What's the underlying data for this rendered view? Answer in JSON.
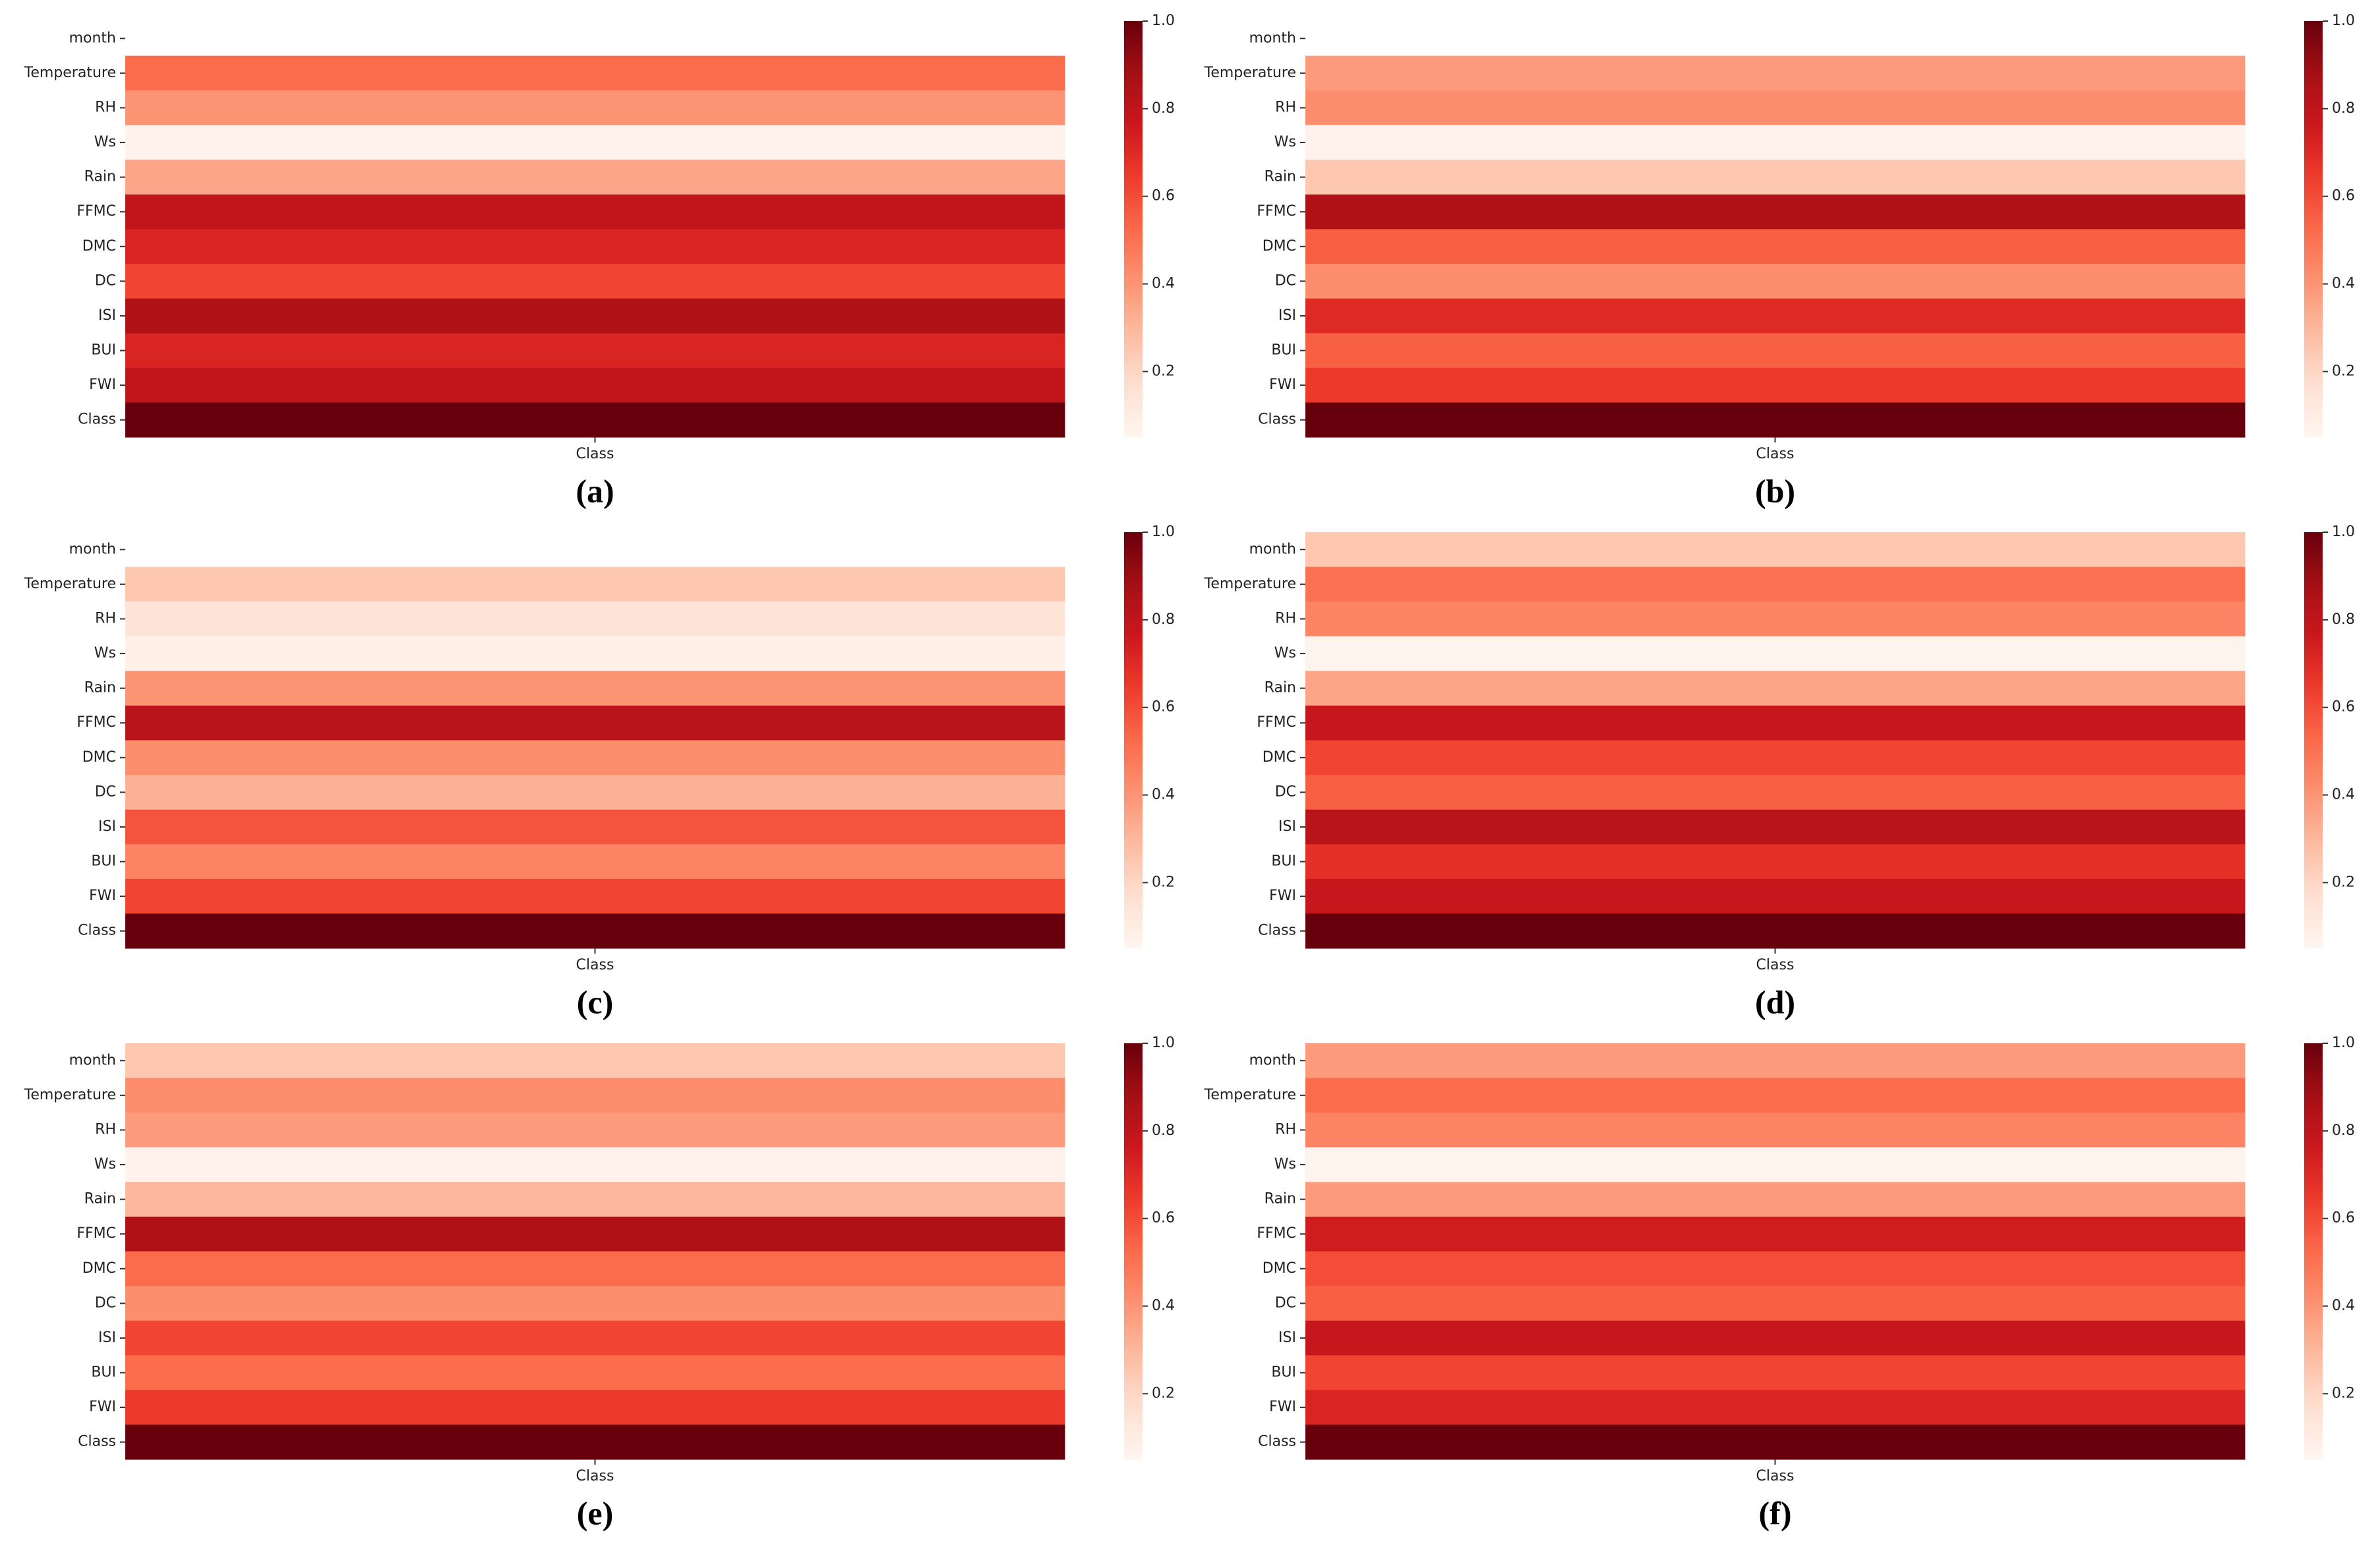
{
  "chart_data": [
    {
      "type": "heatmap",
      "caption": "(a)",
      "colormap": "Reds",
      "y_categories": [
        "month",
        "Temperature",
        "RH",
        "Ws",
        "Rain",
        "FFMC",
        "DMC",
        "DC",
        "ISI",
        "BUI",
        "FWI",
        "Class"
      ],
      "x_categories": [
        "Class"
      ],
      "values": [
        [
          null
        ],
        [
          0.52
        ],
        [
          0.4
        ],
        [
          0.07
        ],
        [
          0.35
        ],
        [
          0.8
        ],
        [
          0.72
        ],
        [
          0.62
        ],
        [
          0.85
        ],
        [
          0.72
        ],
        [
          0.8
        ],
        [
          1.0
        ]
      ],
      "clim": [
        0.05,
        1.0
      ],
      "cticks": [
        0.2,
        0.4,
        0.6,
        0.8,
        {
          "value": 1,
          "label": "1.0"
        }
      ]
    },
    {
      "type": "heatmap",
      "caption": "(b)",
      "colormap": "Reds",
      "y_categories": [
        "month",
        "Temperature",
        "RH",
        "Ws",
        "Rain",
        "FFMC",
        "DMC",
        "DC",
        "ISI",
        "BUI",
        "FWI",
        "Class"
      ],
      "x_categories": [
        "Class"
      ],
      "values": [
        [
          null
        ],
        [
          0.38
        ],
        [
          0.42
        ],
        [
          0.07
        ],
        [
          0.25
        ],
        [
          0.85
        ],
        [
          0.55
        ],
        [
          0.42
        ],
        [
          0.7
        ],
        [
          0.55
        ],
        [
          0.65
        ],
        [
          1.0
        ]
      ],
      "clim": [
        0.05,
        1.0
      ],
      "cticks": [
        0.2,
        0.4,
        0.6,
        0.8,
        {
          "value": 1,
          "label": "1.0"
        }
      ]
    },
    {
      "type": "heatmap",
      "caption": "(c)",
      "colormap": "Reds",
      "y_categories": [
        "month",
        "Temperature",
        "RH",
        "Ws",
        "Rain",
        "FFMC",
        "DMC",
        "DC",
        "ISI",
        "BUI",
        "FWI",
        "Class"
      ],
      "x_categories": [
        "Class"
      ],
      "values": [
        [
          null
        ],
        [
          0.25
        ],
        [
          0.15
        ],
        [
          0.08
        ],
        [
          0.4
        ],
        [
          0.82
        ],
        [
          0.42
        ],
        [
          0.32
        ],
        [
          0.58
        ],
        [
          0.45
        ],
        [
          0.62
        ],
        [
          1.0
        ]
      ],
      "clim": [
        0.05,
        1.0
      ],
      "cticks": [
        0.2,
        0.4,
        0.6,
        0.8,
        {
          "value": 1,
          "label": "1.0"
        }
      ]
    },
    {
      "type": "heatmap",
      "caption": "(d)",
      "colormap": "Reds",
      "y_categories": [
        "month",
        "Temperature",
        "RH",
        "Ws",
        "Rain",
        "FFMC",
        "DMC",
        "DC",
        "ISI",
        "BUI",
        "FWI",
        "Class"
      ],
      "x_categories": [
        "Class"
      ],
      "values": [
        [
          0.25
        ],
        [
          0.5
        ],
        [
          0.45
        ],
        [
          0.06
        ],
        [
          0.35
        ],
        [
          0.78
        ],
        [
          0.62
        ],
        [
          0.55
        ],
        [
          0.82
        ],
        [
          0.68
        ],
        [
          0.78
        ],
        [
          1.0
        ]
      ],
      "clim": [
        0.05,
        1.0
      ],
      "cticks": [
        0.2,
        0.4,
        0.6,
        0.8,
        {
          "value": 1,
          "label": "1.0"
        }
      ]
    },
    {
      "type": "heatmap",
      "caption": "(e)",
      "colormap": "Reds",
      "y_categories": [
        "month",
        "Temperature",
        "RH",
        "Ws",
        "Rain",
        "FFMC",
        "DMC",
        "DC",
        "ISI",
        "BUI",
        "FWI",
        "Class"
      ],
      "x_categories": [
        "Class"
      ],
      "values": [
        [
          0.25
        ],
        [
          0.42
        ],
        [
          0.38
        ],
        [
          0.07
        ],
        [
          0.3
        ],
        [
          0.85
        ],
        [
          0.52
        ],
        [
          0.42
        ],
        [
          0.62
        ],
        [
          0.52
        ],
        [
          0.65
        ],
        [
          1.0
        ]
      ],
      "clim": [
        0.05,
        1.0
      ],
      "cticks": [
        0.2,
        0.4,
        0.6,
        0.8,
        {
          "value": 1,
          "label": "1.0"
        }
      ]
    },
    {
      "type": "heatmap",
      "caption": "(f)",
      "colormap": "Reds",
      "y_categories": [
        "month",
        "Temperature",
        "RH",
        "Ws",
        "Rain",
        "FFMC",
        "DMC",
        "DC",
        "ISI",
        "BUI",
        "FWI",
        "Class"
      ],
      "x_categories": [
        "Class"
      ],
      "values": [
        [
          0.38
        ],
        [
          0.52
        ],
        [
          0.45
        ],
        [
          0.06
        ],
        [
          0.38
        ],
        [
          0.75
        ],
        [
          0.6
        ],
        [
          0.55
        ],
        [
          0.78
        ],
        [
          0.62
        ],
        [
          0.72
        ],
        [
          1.0
        ]
      ],
      "clim": [
        0.05,
        1.0
      ],
      "cticks": [
        0.2,
        0.4,
        0.6,
        0.8,
        {
          "value": 1,
          "label": "1.0"
        }
      ]
    }
  ]
}
